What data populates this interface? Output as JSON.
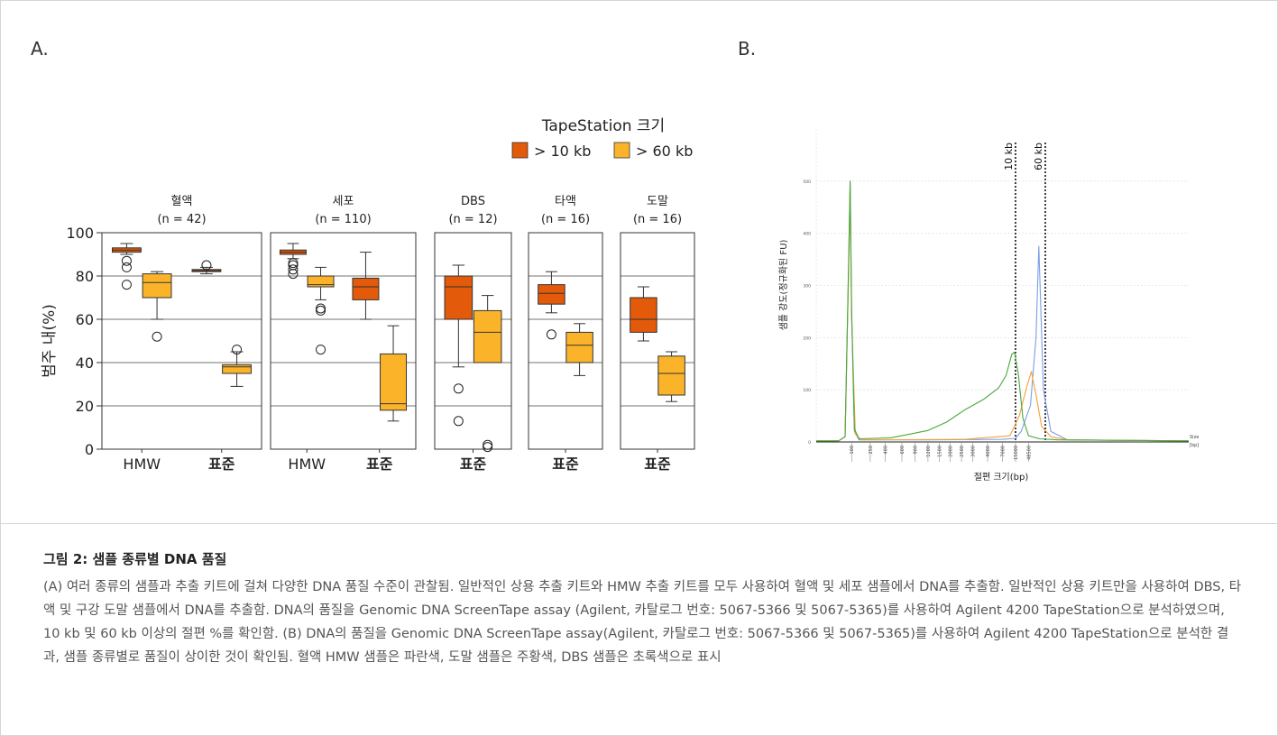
{
  "panel_labels": {
    "a": "A.",
    "b": "B."
  },
  "caption": {
    "title": "그림 2: 샘플 종류별 DNA 품질",
    "body": "(A) 여러 종류의 샘플과 추출 키트에 걸쳐 다양한 DNA 품질 수준이 관찰됨. 일반적인 상용 추출 키트와 HMW 추출 키트를 모두 사용하여 혈액 및 세포 샘플에서 DNA를 추출함. 일반적인 상용 키트만을 사용하여 DBS, 타액 및 구강 도말 샘플에서 DNA를 추출함. DNA의 품질을 Genomic DNA ScreenTape assay (Agilent, 카탈로그 번호: 5067-5366 및 5067-5365)를 사용하여 Agilent 4200 TapeStation으로 분석하였으며, 10 kb 및 60 kb 이상의 절편 %를 확인함. (B) DNA의 품질을 Genomic DNA ScreenTape assay(Agilent, 카탈로그 번호: 5067-5366 및 5067-5365)를 사용하여 Agilent 4200 TapeStation으로 분석한 결과, 샘플 종류별로 품질이 상이한 것이 확인됨. 혈액 HMW 샘플은 파란색, 도말 샘플은 주황색, DBS 샘플은 초록색으로 표시"
  },
  "colors": {
    "gt10": "#e35a0a",
    "gt60": "#fbb42a",
    "blue": "#7b9fe6",
    "orange": "#f4a13b",
    "green": "#4aa83c"
  },
  "chart_data": [
    {
      "type": "box",
      "legend_title": "TapeStation 크기",
      "legend": [
        "> 10 kb",
        "> 60 kb"
      ],
      "ylabel": "범주 내(%)",
      "ylim": [
        0,
        100
      ],
      "yticks": [
        0,
        20,
        40,
        60,
        80,
        100
      ],
      "grid": true,
      "groups": [
        {
          "title": "혈액",
          "n": "(n = 42)",
          "xticks": [
            "HMW",
            "표준"
          ],
          "boxes": [
            {
              "kit": "HMW",
              "size": "> 10 kb",
              "min": 90,
              "q1": 91,
              "median": 92,
              "q3": 93,
              "max": 95,
              "outliers": [
                87,
                84,
                76
              ]
            },
            {
              "kit": "HMW",
              "size": "> 60 kb",
              "min": 60,
              "q1": 70,
              "median": 77,
              "q3": 81,
              "max": 82,
              "outliers": [
                52
              ]
            },
            {
              "kit": "표준",
              "size": "> 10 kb",
              "min": 81,
              "q1": 82,
              "median": 82.5,
              "q3": 83,
              "max": 84,
              "outliers": [
                85
              ]
            },
            {
              "kit": "표준",
              "size": "> 60 kb",
              "min": 29,
              "q1": 35,
              "median": 38,
              "q3": 39,
              "max": 45,
              "outliers": [
                46
              ]
            }
          ]
        },
        {
          "title": "세포",
          "n": "(n = 110)",
          "xticks": [
            "HMW",
            "표준"
          ],
          "boxes": [
            {
              "kit": "HMW",
              "size": "> 10 kb",
              "min": 88,
              "q1": 90,
              "median": 91,
              "q3": 92,
              "max": 95,
              "outliers": [
                86,
                85,
                83,
                81
              ]
            },
            {
              "kit": "HMW",
              "size": "> 60 kb",
              "min": 69,
              "q1": 75,
              "median": 76,
              "q3": 80,
              "max": 84,
              "outliers": [
                65,
                64,
                46
              ]
            },
            {
              "kit": "표준",
              "size": "> 10 kb",
              "min": 60,
              "q1": 69,
              "median": 75,
              "q3": 79,
              "max": 91,
              "outliers": []
            },
            {
              "kit": "표준",
              "size": "> 60 kb",
              "min": 13,
              "q1": 18,
              "median": 21,
              "q3": 44,
              "max": 57,
              "outliers": []
            }
          ]
        },
        {
          "title": "DBS",
          "n": "(n = 12)",
          "xticks": [
            "표준"
          ],
          "boxes": [
            {
              "kit": "표준",
              "size": "> 10 kb",
              "min": 38,
              "q1": 60,
              "median": 75,
              "q3": 80,
              "max": 85,
              "outliers": [
                28,
                13
              ]
            },
            {
              "kit": "표준",
              "size": "> 60 kb",
              "min": 40,
              "q1": 40,
              "median": 54,
              "q3": 64,
              "max": 71,
              "outliers": [
                2,
                1
              ]
            }
          ]
        },
        {
          "title": "타액",
          "n": "(n = 16)",
          "xticks": [
            "표준"
          ],
          "boxes": [
            {
              "kit": "표준",
              "size": "> 10 kb",
              "min": 63,
              "q1": 67,
              "median": 72,
              "q3": 76,
              "max": 82,
              "outliers": [
                53
              ]
            },
            {
              "kit": "표준",
              "size": "> 60 kb",
              "min": 34,
              "q1": 40,
              "median": 48,
              "q3": 54,
              "max": 58,
              "outliers": []
            }
          ]
        },
        {
          "title": "도말",
          "n": "(n = 16)",
          "xticks": [
            "표준"
          ],
          "boxes": [
            {
              "kit": "표준",
              "size": "> 10 kb",
              "min": 50,
              "q1": 54,
              "median": 60,
              "q3": 70,
              "max": 75,
              "outliers": []
            },
            {
              "kit": "표준",
              "size": "> 60 kb",
              "min": 22,
              "q1": 25,
              "median": 35,
              "q3": 43,
              "max": 45,
              "outliers": []
            }
          ]
        }
      ]
    },
    {
      "type": "line",
      "xlabel": "절편 크기(bp)",
      "ylabel": "샘플 강도(정규화된 FU)",
      "yticks": [
        0,
        100,
        200,
        300,
        400,
        500
      ],
      "xticks": [
        "100",
        "250",
        "400",
        "600",
        "900",
        "1200",
        "1500",
        "2000",
        "2500",
        "3000",
        "4000",
        "7000",
        "15000",
        "48500"
      ],
      "size_label": "Size",
      "unit_label": "[bp]",
      "markers": [
        "10 kb",
        "60 kb"
      ],
      "series": [
        {
          "color": "blue",
          "points": [
            [
              0,
              2
            ],
            [
              1.2,
              2
            ],
            [
              1.55,
              10
            ],
            [
              1.75,
              350
            ],
            [
              1.82,
              500
            ],
            [
              1.9,
              250
            ],
            [
              2.05,
              20
            ],
            [
              2.3,
              4
            ],
            [
              6,
              4
            ],
            [
              10,
              5
            ],
            [
              10.7,
              7
            ],
            [
              11.0,
              20
            ],
            [
              11.5,
              70
            ],
            [
              11.8,
              200
            ],
            [
              11.95,
              375
            ],
            [
              12.2,
              100
            ],
            [
              12.6,
              20
            ],
            [
              13.5,
              4
            ],
            [
              20,
              2
            ]
          ]
        },
        {
          "color": "orange",
          "points": [
            [
              0,
              2
            ],
            [
              1.2,
              2
            ],
            [
              1.55,
              10
            ],
            [
              1.75,
              340
            ],
            [
              1.82,
              490
            ],
            [
              1.9,
              240
            ],
            [
              2.1,
              15
            ],
            [
              2.4,
              4
            ],
            [
              8,
              5
            ],
            [
              10.4,
              12
            ],
            [
              10.9,
              50
            ],
            [
              11.3,
              105
            ],
            [
              11.55,
              135
            ],
            [
              11.8,
              90
            ],
            [
              12.1,
              30
            ],
            [
              12.6,
              10
            ],
            [
              13.5,
              4
            ],
            [
              20,
              2
            ]
          ]
        },
        {
          "color": "green",
          "points": [
            [
              0,
              2
            ],
            [
              1.2,
              2
            ],
            [
              1.55,
              10
            ],
            [
              1.75,
              360
            ],
            [
              1.82,
              500
            ],
            [
              1.9,
              260
            ],
            [
              2.05,
              25
            ],
            [
              2.3,
              6
            ],
            [
              4,
              8
            ],
            [
              6,
              22
            ],
            [
              7,
              38
            ],
            [
              8,
              62
            ],
            [
              9,
              82
            ],
            [
              9.8,
              104
            ],
            [
              10.2,
              128
            ],
            [
              10.5,
              168
            ],
            [
              10.65,
              172
            ],
            [
              10.85,
              130
            ],
            [
              11.1,
              45
            ],
            [
              11.4,
              12
            ],
            [
              12,
              6
            ],
            [
              13,
              4
            ],
            [
              20,
              2
            ]
          ]
        }
      ]
    }
  ]
}
